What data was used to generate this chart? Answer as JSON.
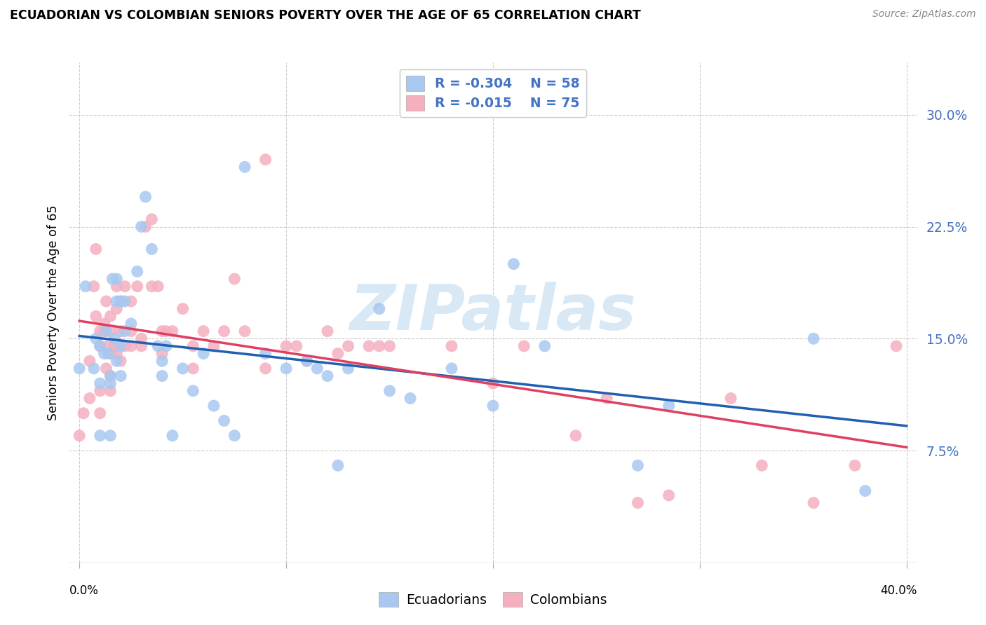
{
  "title": "ECUADORIAN VS COLOMBIAN SENIORS POVERTY OVER THE AGE OF 65 CORRELATION CHART",
  "source": "Source: ZipAtlas.com",
  "ylabel": "Seniors Poverty Over the Age of 65",
  "ytick_values": [
    0.075,
    0.15,
    0.225,
    0.3
  ],
  "ytick_labels": [
    "7.5%",
    "15.0%",
    "22.5%",
    "30.0%"
  ],
  "xlim": [
    -0.005,
    0.405
  ],
  "ylim": [
    0.0,
    0.335
  ],
  "ecuadorians": {
    "R": -0.304,
    "N": 58,
    "scatter_color": "#a8c8f0",
    "line_color": "#2060b0",
    "x": [
      0.0,
      0.003,
      0.007,
      0.008,
      0.01,
      0.01,
      0.01,
      0.012,
      0.013,
      0.014,
      0.015,
      0.015,
      0.015,
      0.016,
      0.017,
      0.018,
      0.018,
      0.018,
      0.02,
      0.02,
      0.02,
      0.022,
      0.022,
      0.025,
      0.028,
      0.03,
      0.032,
      0.035,
      0.038,
      0.04,
      0.04,
      0.042,
      0.045,
      0.05,
      0.055,
      0.06,
      0.065,
      0.07,
      0.075,
      0.08,
      0.09,
      0.1,
      0.11,
      0.115,
      0.12,
      0.125,
      0.13,
      0.145,
      0.15,
      0.16,
      0.18,
      0.2,
      0.21,
      0.225,
      0.27,
      0.285,
      0.355,
      0.38
    ],
    "y": [
      0.13,
      0.185,
      0.13,
      0.15,
      0.085,
      0.12,
      0.145,
      0.14,
      0.155,
      0.14,
      0.12,
      0.125,
      0.085,
      0.19,
      0.15,
      0.175,
      0.19,
      0.135,
      0.145,
      0.125,
      0.175,
      0.155,
      0.175,
      0.16,
      0.195,
      0.225,
      0.245,
      0.21,
      0.145,
      0.135,
      0.125,
      0.145,
      0.085,
      0.13,
      0.115,
      0.14,
      0.105,
      0.095,
      0.085,
      0.265,
      0.14,
      0.13,
      0.135,
      0.13,
      0.125,
      0.065,
      0.13,
      0.17,
      0.115,
      0.11,
      0.13,
      0.105,
      0.2,
      0.145,
      0.065,
      0.105,
      0.15,
      0.048
    ]
  },
  "colombians": {
    "R": -0.015,
    "N": 75,
    "scatter_color": "#f5b0c0",
    "line_color": "#e04060",
    "x": [
      0.0,
      0.002,
      0.005,
      0.005,
      0.007,
      0.008,
      0.008,
      0.01,
      0.01,
      0.01,
      0.01,
      0.012,
      0.012,
      0.013,
      0.013,
      0.014,
      0.015,
      0.015,
      0.015,
      0.015,
      0.015,
      0.017,
      0.018,
      0.018,
      0.018,
      0.02,
      0.02,
      0.02,
      0.022,
      0.022,
      0.025,
      0.025,
      0.025,
      0.028,
      0.03,
      0.03,
      0.032,
      0.035,
      0.035,
      0.038,
      0.04,
      0.04,
      0.042,
      0.045,
      0.05,
      0.055,
      0.055,
      0.06,
      0.065,
      0.07,
      0.075,
      0.08,
      0.09,
      0.09,
      0.1,
      0.105,
      0.11,
      0.12,
      0.125,
      0.13,
      0.14,
      0.145,
      0.15,
      0.18,
      0.2,
      0.215,
      0.24,
      0.255,
      0.27,
      0.285,
      0.315,
      0.33,
      0.355,
      0.375,
      0.395
    ],
    "y": [
      0.085,
      0.1,
      0.11,
      0.135,
      0.185,
      0.21,
      0.165,
      0.1,
      0.155,
      0.115,
      0.145,
      0.16,
      0.155,
      0.13,
      0.175,
      0.145,
      0.125,
      0.115,
      0.14,
      0.155,
      0.165,
      0.145,
      0.17,
      0.14,
      0.185,
      0.175,
      0.155,
      0.135,
      0.145,
      0.185,
      0.145,
      0.155,
      0.175,
      0.185,
      0.15,
      0.145,
      0.225,
      0.23,
      0.185,
      0.185,
      0.155,
      0.14,
      0.155,
      0.155,
      0.17,
      0.145,
      0.13,
      0.155,
      0.145,
      0.155,
      0.19,
      0.155,
      0.27,
      0.13,
      0.145,
      0.145,
      0.135,
      0.155,
      0.14,
      0.145,
      0.145,
      0.145,
      0.145,
      0.145,
      0.12,
      0.145,
      0.085,
      0.11,
      0.04,
      0.045,
      0.11,
      0.065,
      0.04,
      0.065,
      0.145
    ]
  },
  "watermark": "ZIPatlas",
  "background_color": "#ffffff",
  "grid_color": "#cccccc",
  "grid_linestyle": "--"
}
